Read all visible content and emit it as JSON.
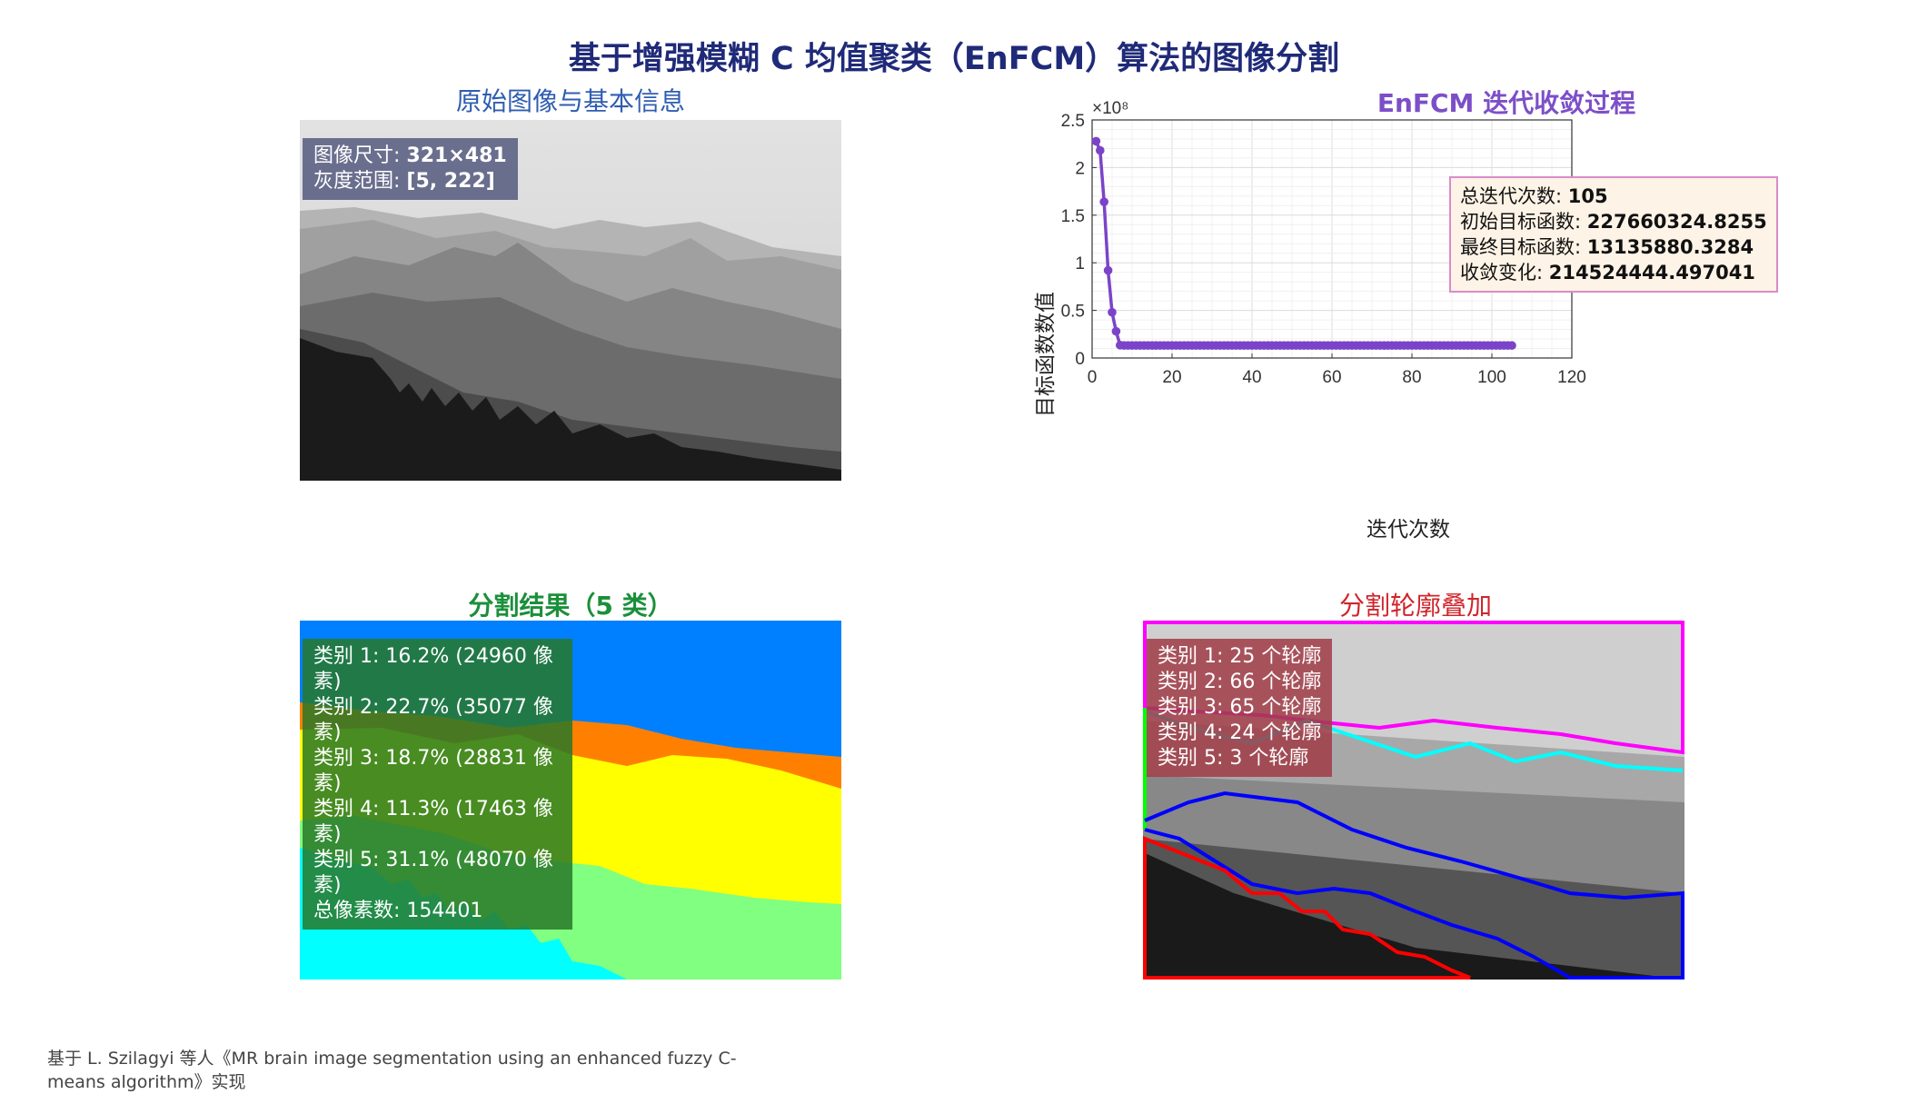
{
  "title": "基于增强模糊 C 均值聚类（EnFCM）算法的图像分割",
  "panel1": {
    "title": "原始图像与基本信息",
    "info": [
      {
        "label": "图像尺寸: ",
        "value": "321×481"
      },
      {
        "label": "灰度范围: ",
        "value": "[5, 222]"
      }
    ]
  },
  "panel3": {
    "title": "分割结果（5 类）",
    "lines": [
      "类别 1: 16.2% (24960 像素)",
      "类别 2: 22.7% (35077 像素)",
      "类别 3: 18.7% (28831 像素)",
      "类别 4: 11.3% (17463 像素)",
      "类别 5: 31.1% (48070 像素)",
      "总像素数: 154401"
    ],
    "colors": [
      "#0080ff",
      "#ff8000",
      "#ffff00",
      "#80ff80",
      "#00ffff"
    ]
  },
  "panel4": {
    "title": "分割轮廓叠加",
    "lines": [
      "类别 1: 25 个轮廓",
      "类别 2: 66 个轮廓",
      "类别 3: 65 个轮廓",
      "类别 4: 24 个轮廓",
      "类别 5: 3 个轮廓"
    ],
    "contour_colors": [
      "#ff00ff",
      "#00ffff",
      "#00ff00",
      "#0000ff",
      "#ff0000"
    ]
  },
  "stats": {
    "lines": [
      {
        "label": "总迭代次数: ",
        "value": "105"
      },
      {
        "label": "初始目标函数: ",
        "value": "227660324.8255"
      },
      {
        "label": "最终目标函数: ",
        "value": "13135880.3284"
      },
      {
        "label": "收敛变化: ",
        "value": "214524444.497041"
      }
    ]
  },
  "chart_data": {
    "type": "line",
    "title": "EnFCM 迭代收敛过程",
    "xlabel": "迭代次数",
    "ylabel": "目标函数数值",
    "y_exponent": "×10⁸",
    "xlim": [
      0,
      120
    ],
    "ylim": [
      0,
      2.5
    ],
    "xticks": [
      0,
      20,
      40,
      60,
      80,
      100,
      120
    ],
    "yticks": [
      0,
      0.5,
      1,
      1.5,
      2,
      2.5
    ],
    "grid": true,
    "series": [
      {
        "color": "#7b44c8",
        "x_range": [
          1,
          105
        ],
        "head_values": [
          2.2766,
          2.18,
          1.64,
          0.92,
          0.48,
          0.28,
          0.135
        ],
        "plateau_value": 0.1314
      }
    ]
  },
  "footnote": "基于 L. Szilagyi 等人《MR brain image segmentation using an enhanced fuzzy C-means algorithm》实现"
}
